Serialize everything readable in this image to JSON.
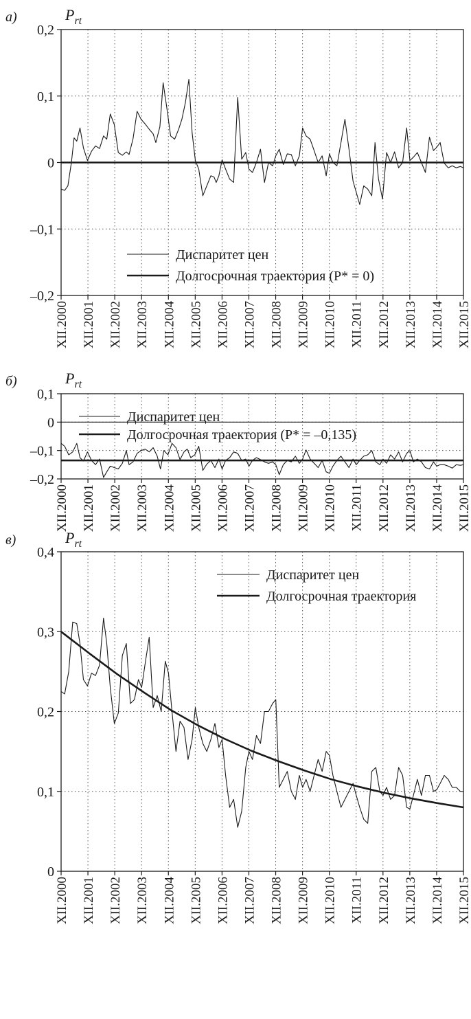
{
  "chart_data": [
    {
      "type": "line",
      "panel_label": "а)",
      "ylabel": "P",
      "ylabel_sub": "rt",
      "ylim": [
        -0.2,
        0.2
      ],
      "yticks": [
        -0.2,
        -0.1,
        0,
        0.1,
        0.2
      ],
      "ytick_labels": [
        "–0,2",
        "–0,1",
        "0",
        "0,1",
        "0,2"
      ],
      "xlim": [
        2000.917,
        2015.917
      ],
      "xtick_labels": [
        "XII.2000",
        "XII.2001",
        "XII.2002",
        "XII.2003",
        "XII.2004",
        "XII.2005",
        "XII.2006",
        "XII.2007",
        "XII.2008",
        "XII.2009",
        "XII.2010",
        "XII.2011",
        "XII.2012",
        "XII.2013",
        "XII.2014",
        "XII.2015"
      ],
      "grid": true,
      "legend_position": "bottom-center",
      "series": [
        {
          "name": "Диспаритет цен",
          "style": "thin",
          "x": [
            2000.92,
            2001.05,
            2001.17,
            2001.3,
            2001.4,
            2001.5,
            2001.62,
            2001.75,
            2001.9,
            2002.05,
            2002.2,
            2002.35,
            2002.5,
            2002.62,
            2002.75,
            2002.9,
            2003.05,
            2003.2,
            2003.35,
            2003.45,
            2003.6,
            2003.75,
            2003.9,
            2004.05,
            2004.2,
            2004.35,
            2004.45,
            2004.6,
            2004.72,
            2004.85,
            2005.0,
            2005.15,
            2005.3,
            2005.42,
            2005.55,
            2005.68,
            2005.8,
            2005.92,
            2006.05,
            2006.2,
            2006.35,
            2006.5,
            2006.62,
            2006.7,
            2006.8,
            2006.92,
            2007.05,
            2007.2,
            2007.35,
            2007.5,
            2007.65,
            2007.8,
            2007.92,
            2008.05,
            2008.2,
            2008.35,
            2008.5,
            2008.65,
            2008.8,
            2008.92,
            2009.05,
            2009.2,
            2009.35,
            2009.5,
            2009.65,
            2009.8,
            2009.92,
            2010.05,
            2010.2,
            2010.35,
            2010.5,
            2010.65,
            2010.8,
            2010.92,
            2011.05,
            2011.2,
            2011.35,
            2011.5,
            2011.65,
            2011.8,
            2011.92,
            2012.05,
            2012.2,
            2012.35,
            2012.5,
            2012.62,
            2012.75,
            2012.9,
            2013.05,
            2013.2,
            2013.35,
            2013.5,
            2013.65,
            2013.8,
            2013.92,
            2014.05,
            2014.2,
            2014.35,
            2014.5,
            2014.65,
            2014.8,
            2014.92,
            2015.05,
            2015.2,
            2015.35,
            2015.5,
            2015.65,
            2015.8,
            2015.917
          ],
          "y": [
            -0.04,
            -0.042,
            -0.035,
            0.0,
            0.037,
            0.032,
            0.052,
            0.022,
            0.003,
            0.017,
            0.025,
            0.021,
            0.04,
            0.035,
            0.073,
            0.057,
            0.015,
            0.011,
            0.016,
            0.012,
            0.036,
            0.077,
            0.065,
            0.058,
            0.05,
            0.043,
            0.03,
            0.054,
            0.12,
            0.085,
            0.04,
            0.035,
            0.05,
            0.065,
            0.09,
            0.125,
            0.045,
            0.003,
            -0.01,
            -0.05,
            -0.035,
            -0.02,
            -0.022,
            -0.03,
            -0.02,
            0.004,
            -0.01,
            -0.025,
            -0.03,
            0.098,
            0.005,
            0.015,
            -0.01,
            -0.015,
            0.0,
            0.02,
            -0.03,
            0.0,
            -0.005,
            0.01,
            0.02,
            -0.003,
            0.013,
            0.012,
            -0.005,
            0.01,
            0.052,
            0.04,
            0.035,
            0.018,
            0.0,
            0.01,
            -0.02,
            0.013,
            0.0,
            -0.005,
            0.03,
            0.065,
            0.02,
            -0.028,
            -0.045,
            -0.063,
            -0.035,
            -0.04,
            -0.05,
            0.03,
            -0.025,
            -0.055,
            0.015,
            0.0,
            0.016,
            -0.008,
            0.0,
            0.052,
            0.003,
            0.008,
            0.015,
            0.0,
            -0.015,
            0.038,
            0.018,
            0.023,
            0.03,
            -0.001,
            -0.008,
            -0.005,
            -0.008,
            -0.006,
            -0.008
          ]
        },
        {
          "name": "Долгосрочная траектория (P* = 0)",
          "style": "thick",
          "x": [
            2000.917,
            2015.917
          ],
          "y": [
            0,
            0
          ]
        }
      ]
    },
    {
      "type": "line",
      "panel_label": "б)",
      "ylabel": "P",
      "ylabel_sub": "rt",
      "ylim": [
        -0.2,
        0.1
      ],
      "yticks": [
        -0.2,
        -0.1,
        0,
        0.1
      ],
      "ytick_labels": [
        "–0,2",
        "–0,1",
        "0",
        "0,1"
      ],
      "xlim": [
        2000.917,
        2015.917
      ],
      "xtick_labels": [
        "XII.2000",
        "XII.2001",
        "XII.2002",
        "XII.2003",
        "XII.2004",
        "XII.2005",
        "XII.2006",
        "XII.2007",
        "XII.2008",
        "XII.2009",
        "XII.2010",
        "XII.2011",
        "XII.2012",
        "XII.2013",
        "XII.2014",
        "XII.2015"
      ],
      "grid": true,
      "zero_line": true,
      "legend_position": "top-left",
      "series": [
        {
          "name": "Диспаритет цен",
          "style": "thin",
          "x": [
            2000.92,
            2001.05,
            2001.2,
            2001.35,
            2001.5,
            2001.62,
            2001.75,
            2001.9,
            2002.05,
            2002.2,
            2002.35,
            2002.5,
            2002.62,
            2002.75,
            2002.9,
            2003.05,
            2003.2,
            2003.35,
            2003.45,
            2003.6,
            2003.75,
            2003.9,
            2004.05,
            2004.2,
            2004.35,
            2004.5,
            2004.62,
            2004.75,
            2004.9,
            2005.05,
            2005.2,
            2005.35,
            2005.5,
            2005.62,
            2005.75,
            2005.9,
            2006.05,
            2006.2,
            2006.35,
            2006.5,
            2006.65,
            2006.8,
            2006.92,
            2007.05,
            2007.2,
            2007.35,
            2007.5,
            2007.65,
            2007.8,
            2007.92,
            2008.05,
            2008.2,
            2008.35,
            2008.5,
            2008.65,
            2008.8,
            2008.92,
            2009.05,
            2009.2,
            2009.35,
            2009.5,
            2009.65,
            2009.8,
            2009.92,
            2010.05,
            2010.2,
            2010.35,
            2010.5,
            2010.65,
            2010.8,
            2010.92,
            2011.05,
            2011.2,
            2011.35,
            2011.5,
            2011.65,
            2011.8,
            2011.92,
            2012.05,
            2012.2,
            2012.35,
            2012.5,
            2012.65,
            2012.8,
            2012.92,
            2013.05,
            2013.2,
            2013.35,
            2013.5,
            2013.65,
            2013.8,
            2013.92,
            2014.05,
            2014.2,
            2014.35,
            2014.5,
            2014.65,
            2014.8,
            2014.92,
            2015.05,
            2015.2,
            2015.35,
            2015.5,
            2015.65,
            2015.8,
            2015.917
          ],
          "y": [
            -0.075,
            -0.085,
            -0.115,
            -0.105,
            -0.075,
            -0.125,
            -0.137,
            -0.105,
            -0.135,
            -0.15,
            -0.13,
            -0.195,
            -0.175,
            -0.155,
            -0.16,
            -0.165,
            -0.145,
            -0.1,
            -0.15,
            -0.14,
            -0.11,
            -0.1,
            -0.095,
            -0.105,
            -0.09,
            -0.12,
            -0.165,
            -0.1,
            -0.115,
            -0.075,
            -0.09,
            -0.132,
            -0.105,
            -0.095,
            -0.125,
            -0.115,
            -0.085,
            -0.17,
            -0.148,
            -0.135,
            -0.16,
            -0.13,
            -0.165,
            -0.135,
            -0.125,
            -0.105,
            -0.11,
            -0.135,
            -0.13,
            -0.155,
            -0.135,
            -0.125,
            -0.132,
            -0.14,
            -0.145,
            -0.14,
            -0.15,
            -0.185,
            -0.15,
            -0.135,
            -0.14,
            -0.12,
            -0.145,
            -0.13,
            -0.098,
            -0.13,
            -0.145,
            -0.16,
            -0.135,
            -0.175,
            -0.18,
            -0.155,
            -0.135,
            -0.12,
            -0.14,
            -0.16,
            -0.13,
            -0.15,
            -0.135,
            -0.12,
            -0.115,
            -0.1,
            -0.14,
            -0.15,
            -0.13,
            -0.145,
            -0.115,
            -0.13,
            -0.105,
            -0.14,
            -0.11,
            -0.1,
            -0.14,
            -0.13,
            -0.14,
            -0.16,
            -0.165,
            -0.14,
            -0.155,
            -0.15,
            -0.15,
            -0.155,
            -0.162,
            -0.15,
            -0.152,
            -0.15
          ]
        },
        {
          "name": "Долгосрочная траектория (P* = –0,135)",
          "style": "thick",
          "x": [
            2000.917,
            2015.917
          ],
          "y": [
            -0.135,
            -0.135
          ]
        }
      ]
    },
    {
      "type": "line",
      "panel_label": "в)",
      "ylabel": "P",
      "ylabel_sub": "rt",
      "ylim": [
        0,
        0.4
      ],
      "yticks": [
        0,
        0.1,
        0.2,
        0.3,
        0.4
      ],
      "ytick_labels": [
        "0",
        "0,1",
        "0,2",
        "0,3",
        "0,4"
      ],
      "xlim": [
        2000.917,
        2015.917
      ],
      "xtick_labels": [
        "XII.2000",
        "XII.2001",
        "XII.2002",
        "XII.2003",
        "XII.2004",
        "XII.2005",
        "XII.2006",
        "XII.2007",
        "XII.2008",
        "XII.2009",
        "XII.2010",
        "XII.2011",
        "XII.2012",
        "XII.2013",
        "XII.2014",
        "XII.2015"
      ],
      "grid": true,
      "legend_position": "top-right",
      "series": [
        {
          "name": "Диспаритет цен",
          "style": "thin",
          "x": [
            2000.92,
            2001.05,
            2001.2,
            2001.35,
            2001.5,
            2001.62,
            2001.75,
            2001.9,
            2002.05,
            2002.2,
            2002.35,
            2002.5,
            2002.62,
            2002.75,
            2002.9,
            2003.05,
            2003.2,
            2003.35,
            2003.5,
            2003.65,
            2003.8,
            2003.92,
            2004.05,
            2004.2,
            2004.35,
            2004.5,
            2004.65,
            2004.8,
            2004.92,
            2005.05,
            2005.2,
            2005.35,
            2005.5,
            2005.65,
            2005.8,
            2005.92,
            2006.05,
            2006.2,
            2006.35,
            2006.5,
            2006.65,
            2006.8,
            2006.92,
            2007.05,
            2007.2,
            2007.35,
            2007.5,
            2007.65,
            2007.8,
            2007.92,
            2008.05,
            2008.2,
            2008.35,
            2008.5,
            2008.65,
            2008.8,
            2008.92,
            2009.05,
            2009.2,
            2009.35,
            2009.5,
            2009.65,
            2009.8,
            2009.92,
            2010.05,
            2010.2,
            2010.35,
            2010.5,
            2010.65,
            2010.8,
            2010.92,
            2011.05,
            2011.2,
            2011.35,
            2011.5,
            2011.65,
            2011.8,
            2011.92,
            2012.05,
            2012.2,
            2012.35,
            2012.5,
            2012.65,
            2012.8,
            2012.92,
            2013.05,
            2013.2,
            2013.35,
            2013.5,
            2013.65,
            2013.8,
            2013.92,
            2014.05,
            2014.2,
            2014.35,
            2014.5,
            2014.65,
            2014.8,
            2014.92,
            2015.05,
            2015.2,
            2015.35,
            2015.5,
            2015.65,
            2015.8,
            2015.917
          ],
          "y": [
            0.225,
            0.222,
            0.25,
            0.312,
            0.31,
            0.285,
            0.24,
            0.232,
            0.248,
            0.245,
            0.258,
            0.317,
            0.285,
            0.23,
            0.185,
            0.198,
            0.27,
            0.285,
            0.21,
            0.215,
            0.24,
            0.23,
            0.26,
            0.293,
            0.205,
            0.22,
            0.2,
            0.263,
            0.248,
            0.2,
            0.15,
            0.188,
            0.18,
            0.14,
            0.165,
            0.205,
            0.18,
            0.16,
            0.15,
            0.165,
            0.185,
            0.155,
            0.165,
            0.12,
            0.08,
            0.09,
            0.055,
            0.075,
            0.13,
            0.15,
            0.14,
            0.17,
            0.16,
            0.2,
            0.2,
            0.21,
            0.215,
            0.105,
            0.115,
            0.125,
            0.1,
            0.09,
            0.12,
            0.105,
            0.115,
            0.1,
            0.12,
            0.14,
            0.125,
            0.15,
            0.145,
            0.12,
            0.1,
            0.08,
            0.09,
            0.1,
            0.11,
            0.095,
            0.08,
            0.065,
            0.06,
            0.125,
            0.13,
            0.1,
            0.095,
            0.105,
            0.09,
            0.095,
            0.13,
            0.12,
            0.08,
            0.078,
            0.095,
            0.115,
            0.095,
            0.12,
            0.12,
            0.1,
            0.102,
            0.11,
            0.12,
            0.115,
            0.105,
            0.105,
            0.1,
            0.1
          ]
        },
        {
          "name": "Долгосрочная траектория",
          "style": "thick",
          "x": [
            2000.917,
            2002.0,
            2003.0,
            2004.0,
            2005.0,
            2006.0,
            2007.0,
            2008.0,
            2009.0,
            2010.0,
            2011.0,
            2012.0,
            2013.0,
            2014.0,
            2015.0,
            2015.917
          ],
          "y": [
            0.3,
            0.272,
            0.247,
            0.224,
            0.202,
            0.183,
            0.166,
            0.151,
            0.138,
            0.126,
            0.115,
            0.106,
            0.098,
            0.091,
            0.085,
            0.08
          ]
        }
      ]
    }
  ]
}
